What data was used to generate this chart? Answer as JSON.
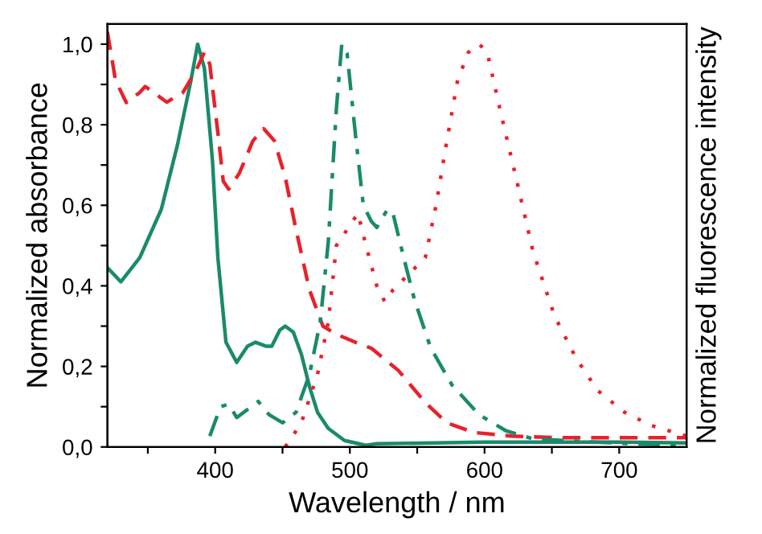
{
  "chart_data": {
    "type": "line",
    "xlabel": "Wavelength / nm",
    "ylabel": "Normalized absorbance",
    "y2label": "Normalized fluorescence intensity",
    "xlim": [
      320,
      750
    ],
    "ylim": [
      0,
      1.05
    ],
    "xticks": [
      {
        "value": 350,
        "label": null
      },
      400,
      {
        "value": 450,
        "label": null
      },
      500,
      {
        "value": 550,
        "label": null
      },
      600,
      {
        "value": 650,
        "label": null
      },
      700
    ],
    "yticks": [
      {
        "value": 0,
        "label": "0,0"
      },
      {
        "value": 0.1,
        "label": null
      },
      {
        "value": 0.2,
        "label": "0,2"
      },
      {
        "value": 0.3,
        "label": null
      },
      {
        "value": 0.4,
        "label": "0,4"
      },
      {
        "value": 0.5,
        "label": null
      },
      {
        "value": 0.6,
        "label": "0,6"
      },
      {
        "value": 0.7,
        "label": null
      },
      {
        "value": 0.8,
        "label": "0,8"
      },
      {
        "value": 0.9,
        "label": null
      },
      {
        "value": 1.0,
        "label": "1,0"
      }
    ],
    "grid": false,
    "marker": "none",
    "series": [
      {
        "color": "#1a8a6a",
        "line_style": "solid",
        "x": [
          320,
          330,
          344,
          360,
          372,
          382,
          387,
          392,
          398,
          402,
          408,
          416,
          424,
          430,
          438,
          442,
          448,
          452,
          458,
          464,
          470,
          476,
          484,
          496,
          512,
          520,
          600,
          700,
          750
        ],
        "values": [
          0.445,
          0.41,
          0.47,
          0.59,
          0.75,
          0.91,
          1.0,
          0.94,
          0.71,
          0.47,
          0.26,
          0.21,
          0.25,
          0.26,
          0.25,
          0.25,
          0.29,
          0.3,
          0.285,
          0.23,
          0.15,
          0.086,
          0.046,
          0.016,
          0.004,
          0.008,
          0.012,
          0.012,
          0.01
        ]
      },
      {
        "color": "#e8212b",
        "line_style": "dashed",
        "x": [
          320,
          326,
          334,
          344,
          348,
          356,
          364,
          376,
          386,
          392,
          396,
          402,
          406,
          410,
          418,
          428,
          436,
          444,
          452,
          460,
          470,
          480,
          490,
          504,
          516,
          536,
          556,
          572,
          592,
          620,
          656,
          696,
          750
        ],
        "values": [
          1.03,
          0.91,
          0.855,
          0.88,
          0.895,
          0.876,
          0.856,
          0.88,
          0.936,
          0.98,
          0.95,
          0.78,
          0.66,
          0.64,
          0.68,
          0.76,
          0.79,
          0.76,
          0.67,
          0.54,
          0.39,
          0.3,
          0.28,
          0.26,
          0.245,
          0.19,
          0.11,
          0.06,
          0.036,
          0.027,
          0.023,
          0.023,
          0.023
        ]
      },
      {
        "color": "#1a8a6a",
        "line_style": "dashdot",
        "x": [
          396,
          404,
          410,
          416,
          424,
          432,
          440,
          450,
          460,
          470,
          478,
          484,
          490,
          494,
          498,
          504,
          510,
          516,
          520,
          528,
          532,
          540,
          548,
          560,
          576,
          596,
          616,
          636,
          676,
          716,
          750
        ],
        "values": [
          0.027,
          0.1,
          0.106,
          0.073,
          0.093,
          0.113,
          0.08,
          0.06,
          0.086,
          0.18,
          0.31,
          0.51,
          0.84,
          1.0,
          0.976,
          0.78,
          0.6,
          0.56,
          0.545,
          0.59,
          0.58,
          0.47,
          0.365,
          0.246,
          0.153,
          0.08,
          0.04,
          0.02,
          0.013,
          0.007,
          0.004
        ]
      },
      {
        "color": "#e8212b",
        "line_style": "dotted",
        "x": [
          452,
          464,
          476,
          484,
          490,
          500,
          506,
          512,
          520,
          526,
          532,
          544,
          556,
          564,
          572,
          580,
          588,
          596,
          602,
          612,
          624,
          636,
          652,
          668,
          684,
          704,
          724,
          744,
          750
        ],
        "values": [
          0.0,
          0.06,
          0.18,
          0.31,
          0.5,
          0.55,
          0.58,
          0.5,
          0.4,
          0.36,
          0.39,
          0.43,
          0.47,
          0.6,
          0.76,
          0.91,
          0.98,
          1.0,
          0.98,
          0.83,
          0.66,
          0.485,
          0.325,
          0.22,
          0.14,
          0.086,
          0.053,
          0.033,
          0.027
        ]
      }
    ]
  }
}
